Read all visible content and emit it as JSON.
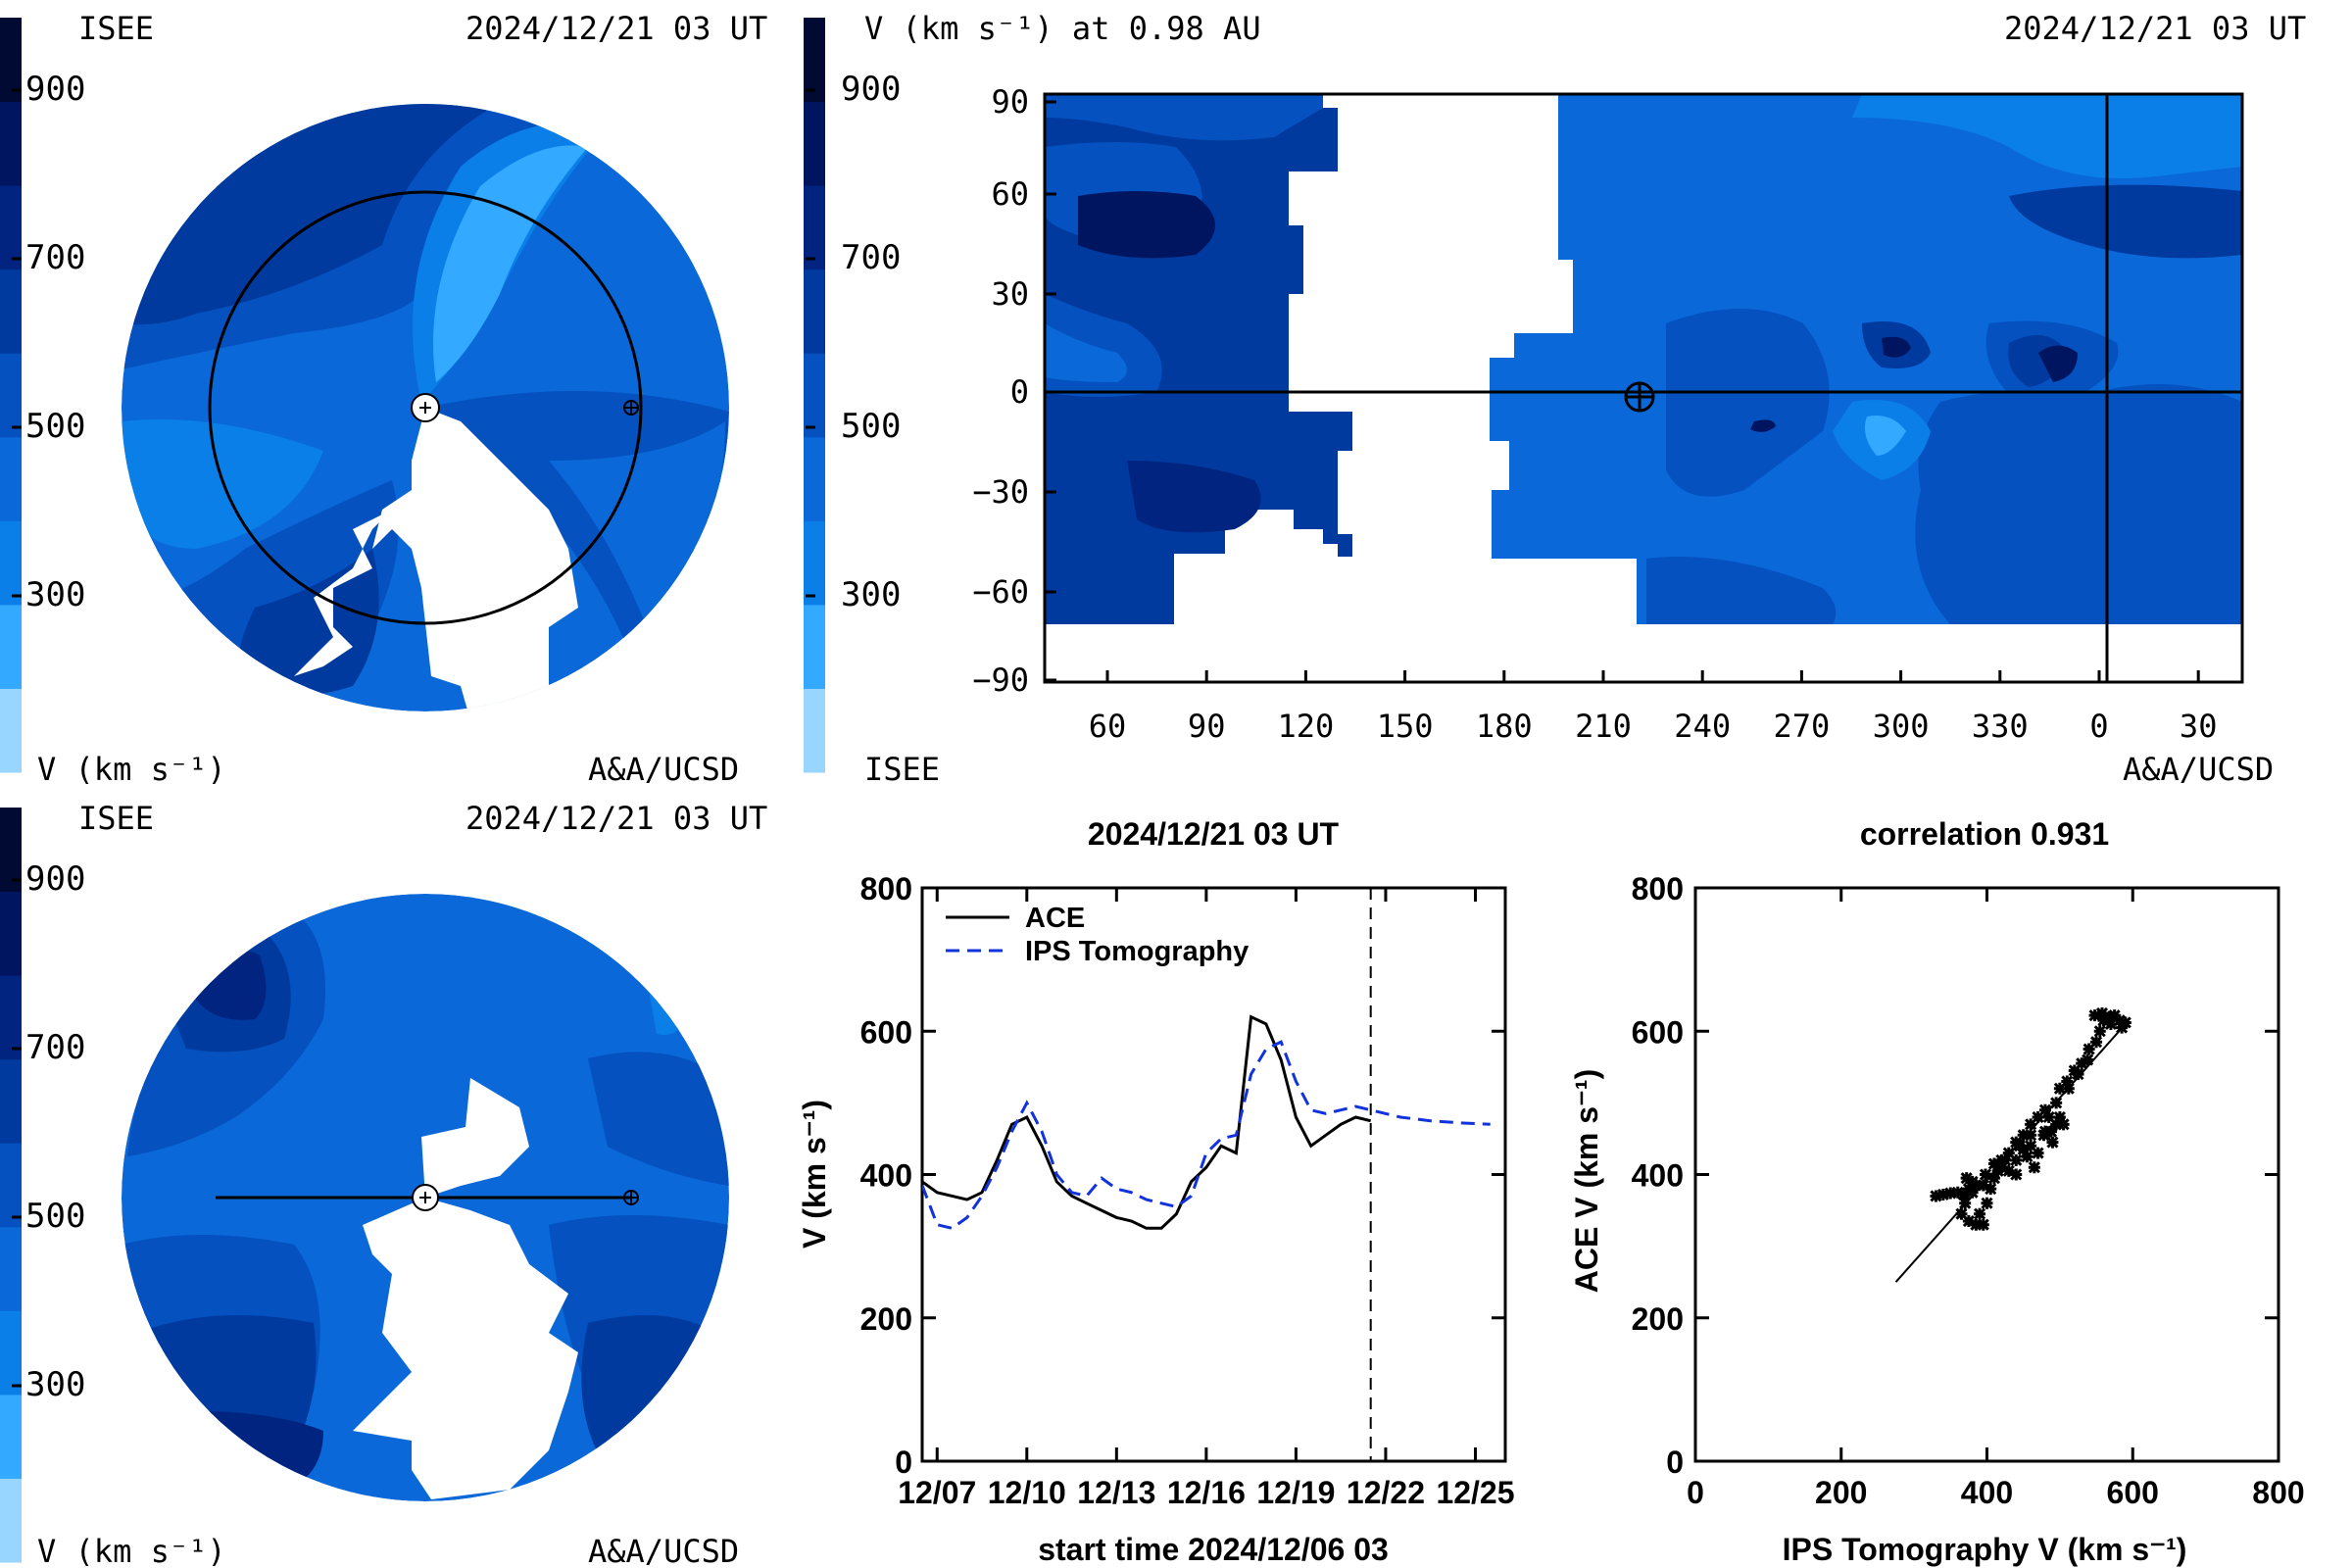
{
  "colorbar": {
    "bands": [
      "#99d6ff",
      "#33aaff",
      "#0a7fe8",
      "#0a68d8",
      "#0451bf",
      "#003a9e",
      "#00247f",
      "#001560",
      "#000a33"
    ],
    "ticks": [
      "900",
      "700",
      "500",
      "300"
    ],
    "unit": "V (km s⁻¹)",
    "source": "ISEE"
  },
  "top_left": {
    "label_left": "ISEE",
    "timestamp": "2024/12/21 03 UT",
    "unit_label": "V (km s⁻¹)",
    "credit": "A&A/UCSD"
  },
  "top_right": {
    "title": "V (km s⁻¹) at 0.98 AU",
    "timestamp": "2024/12/21 03 UT",
    "yticks": [
      "90",
      "60",
      "30",
      "0",
      "−30",
      "−60",
      "−90"
    ],
    "xticks": [
      "60",
      "90",
      "120",
      "150",
      "180",
      "210",
      "240",
      "270",
      "300",
      "330",
      "0",
      "30"
    ],
    "label_left": "ISEE",
    "credit": "A&A/UCSD"
  },
  "bottom_left": {
    "label_left": "ISEE",
    "timestamp": "2024/12/21 03 UT",
    "unit_label": "V (km s⁻¹)",
    "credit": "A&A/UCSD"
  },
  "chart_data": [
    {
      "type": "line",
      "title": "2024/12/21 03 UT",
      "xlabel": "start time 2024/12/06 03",
      "ylabel": "V (km s⁻¹)",
      "xlim": [
        0,
        19.5
      ],
      "ylim": [
        0,
        800
      ],
      "xticks": [
        {
          "at": 0.5,
          "label": "12/07"
        },
        {
          "at": 3.5,
          "label": "12/10"
        },
        {
          "at": 6.5,
          "label": "12/13"
        },
        {
          "at": 9.5,
          "label": "12/16"
        },
        {
          "at": 12.5,
          "label": "12/19"
        },
        {
          "at": 15.5,
          "label": "12/22"
        },
        {
          "at": 18.5,
          "label": "12/25"
        }
      ],
      "yticks": [
        0,
        200,
        400,
        600,
        800
      ],
      "now_marker": 15.0,
      "series": [
        {
          "name": "ACE",
          "color": "#000000",
          "dash": "solid",
          "x": [
            0,
            0.5,
            1,
            1.5,
            2,
            2.5,
            3,
            3.5,
            4,
            4.5,
            5,
            5.5,
            6,
            6.5,
            7,
            7.5,
            8,
            8.5,
            9,
            9.5,
            10,
            10.5,
            11,
            11.5,
            12,
            12.5,
            13,
            13.5,
            14,
            14.5,
            15
          ],
          "y": [
            390,
            375,
            370,
            365,
            375,
            420,
            470,
            480,
            440,
            390,
            370,
            360,
            350,
            340,
            335,
            325,
            325,
            345,
            390,
            410,
            440,
            430,
            620,
            610,
            560,
            480,
            440,
            455,
            470,
            480,
            475
          ]
        },
        {
          "name": "IPS Tomography",
          "color": "#1133dd",
          "dash": "dashed",
          "x": [
            0,
            0.5,
            1,
            1.5,
            2,
            2.5,
            3,
            3.5,
            4,
            4.5,
            5,
            5.5,
            6,
            6.5,
            7,
            7.5,
            8,
            8.5,
            9,
            9.5,
            10,
            10.5,
            11,
            11.5,
            12,
            12.5,
            13,
            13.5,
            14,
            14.5,
            15,
            16,
            17,
            18,
            19
          ],
          "y": [
            385,
            330,
            325,
            340,
            370,
            410,
            460,
            500,
            460,
            400,
            375,
            370,
            395,
            380,
            375,
            365,
            360,
            355,
            370,
            430,
            450,
            455,
            540,
            575,
            585,
            530,
            490,
            485,
            490,
            495,
            490,
            480,
            475,
            472,
            470
          ]
        }
      ]
    },
    {
      "type": "scatter",
      "title": "correlation 0.931",
      "xlabel": "IPS Tomography V (km s⁻¹)",
      "ylabel": "ACE V (km s⁻¹)",
      "xlim": [
        0,
        800
      ],
      "ylim": [
        0,
        800
      ],
      "xticks": [
        0,
        200,
        400,
        600,
        800
      ],
      "yticks": [
        0,
        200,
        400,
        600,
        800
      ],
      "fit_line": [
        [
          275,
          250
        ],
        [
          590,
          610
        ]
      ],
      "points": [
        [
          330,
          370
        ],
        [
          340,
          372
        ],
        [
          350,
          374
        ],
        [
          360,
          375
        ],
        [
          368,
          372
        ],
        [
          375,
          380
        ],
        [
          372,
          395
        ],
        [
          380,
          390
        ],
        [
          385,
          385
        ],
        [
          370,
          360
        ],
        [
          365,
          345
        ],
        [
          375,
          335
        ],
        [
          385,
          330
        ],
        [
          395,
          330
        ],
        [
          390,
          345
        ],
        [
          400,
          360
        ],
        [
          405,
          380
        ],
        [
          398,
          400
        ],
        [
          410,
          415
        ],
        [
          420,
          410
        ],
        [
          430,
          405
        ],
        [
          440,
          420
        ],
        [
          450,
          435
        ],
        [
          460,
          440
        ],
        [
          470,
          430
        ],
        [
          478,
          455
        ],
        [
          488,
          460
        ],
        [
          495,
          470
        ],
        [
          500,
          480
        ],
        [
          505,
          470
        ],
        [
          490,
          445
        ],
        [
          480,
          460
        ],
        [
          470,
          480
        ],
        [
          460,
          470
        ],
        [
          450,
          455
        ],
        [
          440,
          445
        ],
        [
          430,
          430
        ],
        [
          420,
          420
        ],
        [
          415,
          405
        ],
        [
          440,
          400
        ],
        [
          455,
          425
        ],
        [
          465,
          410
        ],
        [
          485,
          480
        ],
        [
          500,
          520
        ],
        [
          510,
          530
        ],
        [
          520,
          545
        ],
        [
          530,
          555
        ],
        [
          540,
          575
        ],
        [
          550,
          585
        ],
        [
          555,
          600
        ],
        [
          560,
          615
        ],
        [
          568,
          620
        ],
        [
          575,
          622
        ],
        [
          582,
          615
        ],
        [
          590,
          612
        ],
        [
          585,
          605
        ],
        [
          570,
          610
        ],
        [
          548,
          622
        ],
        [
          558,
          625
        ],
        [
          538,
          560
        ],
        [
          525,
          540
        ],
        [
          512,
          520
        ],
        [
          495,
          500
        ],
        [
          480,
          490
        ],
        [
          460,
          455
        ],
        [
          445,
          440
        ],
        [
          425,
          420
        ],
        [
          410,
          395
        ],
        [
          395,
          385
        ],
        [
          380,
          375
        ]
      ]
    }
  ]
}
